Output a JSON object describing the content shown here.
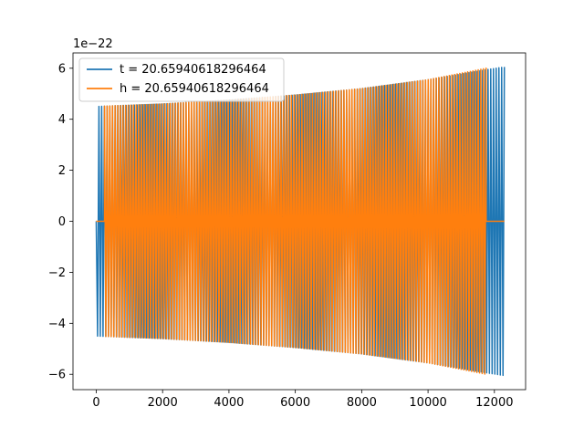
{
  "chart_data": {
    "type": "line",
    "title": "",
    "xlabel": "",
    "ylabel": "",
    "y_offset_label": "1e−22",
    "xlim": [
      -700,
      12940
    ],
    "ylim": [
      -6.6,
      6.6
    ],
    "x_ticks": [
      {
        "value": 0,
        "label": "0"
      },
      {
        "value": 2000,
        "label": "2000"
      },
      {
        "value": 4000,
        "label": "4000"
      },
      {
        "value": 6000,
        "label": "6000"
      },
      {
        "value": 8000,
        "label": "8000"
      },
      {
        "value": 10000,
        "label": "10000"
      },
      {
        "value": 12000,
        "label": "12000"
      }
    ],
    "y_ticks": [
      {
        "value": -6,
        "label": "−6"
      },
      {
        "value": -4,
        "label": "−4"
      },
      {
        "value": -2,
        "label": "−2"
      },
      {
        "value": 0,
        "label": "0"
      },
      {
        "value": 2,
        "label": "2"
      },
      {
        "value": 4,
        "label": "4"
      },
      {
        "value": 6,
        "label": "6"
      }
    ],
    "grid": false,
    "legend_position": "top-left",
    "series": [
      {
        "name": "t = 20.65940618296464",
        "color": "#1f77b4",
        "description_points": [
          [
            0,
            0
          ],
          [
            50,
            4.6
          ],
          [
            11800,
            5.95
          ],
          [
            12300,
            6.05
          ]
        ],
        "envelope": [
          [
            0,
            4.5
          ],
          [
            2000,
            4.6
          ],
          [
            4000,
            4.75
          ],
          [
            6000,
            4.95
          ],
          [
            8000,
            5.2
          ],
          [
            10000,
            5.55
          ],
          [
            11800,
            5.95
          ],
          [
            12300,
            6.05
          ]
        ],
        "x_start": 0,
        "x_end": 12300,
        "cycles": 150
      },
      {
        "name": "h = 20.65940618296464",
        "color": "#ff7f0e",
        "envelope": [
          [
            0,
            4.5
          ],
          [
            2000,
            4.6
          ],
          [
            4000,
            4.75
          ],
          [
            6000,
            4.95
          ],
          [
            8000,
            5.2
          ],
          [
            10000,
            5.55
          ],
          [
            11750,
            6.0
          ]
        ],
        "x_start": 0,
        "x_end": 11750,
        "flat_segments": [
          [
            0,
            250
          ],
          [
            11750,
            12300
          ]
        ],
        "cycles": 145
      }
    ]
  }
}
